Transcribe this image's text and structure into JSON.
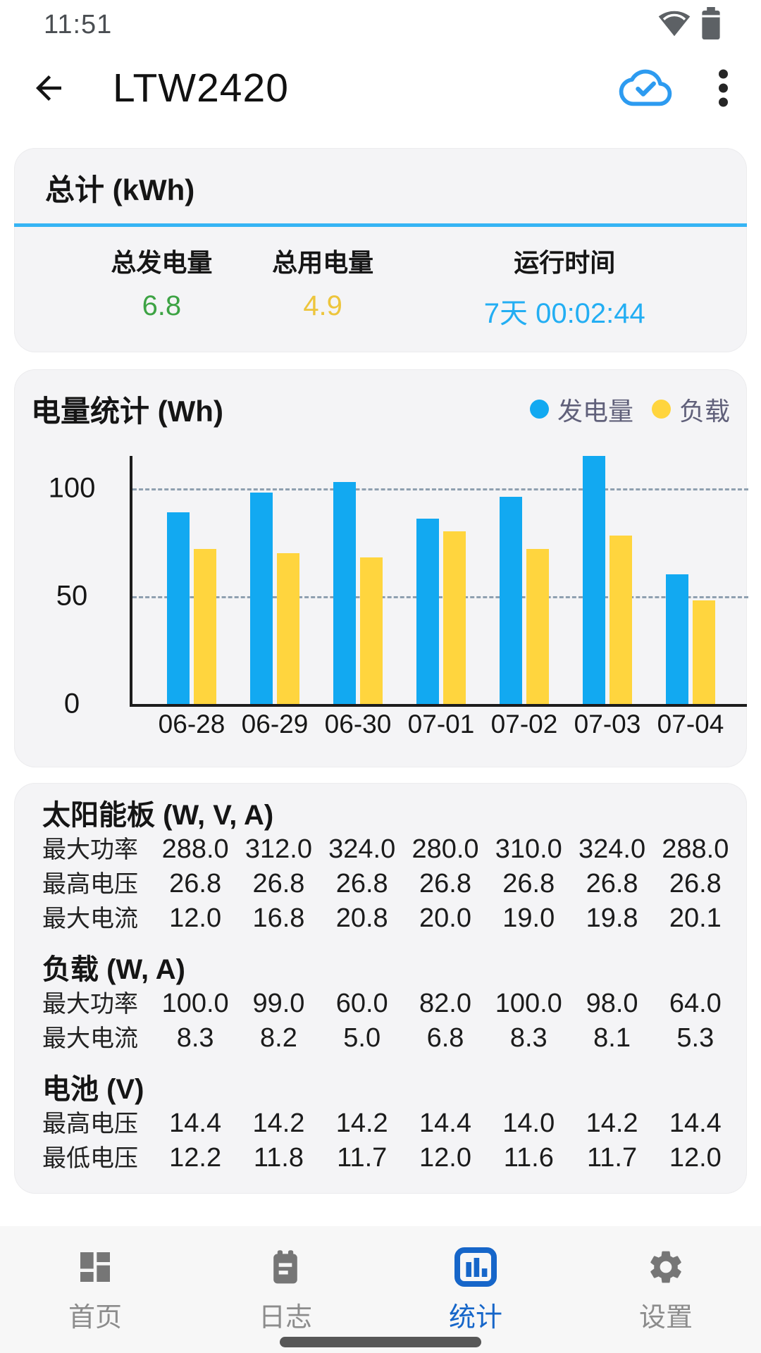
{
  "status_bar": {
    "time": "11:51",
    "icons": [
      "wifi-icon",
      "battery-icon"
    ]
  },
  "header": {
    "title": "LTW2420",
    "icons": [
      "back-arrow-icon",
      "cloud-synced-icon",
      "overflow-menu-icon"
    ]
  },
  "summary_card": {
    "title": "总计 (kWh)",
    "stats": [
      {
        "label": "总发电量",
        "value": "6.8",
        "color": "#3da344"
      },
      {
        "label": "总用电量",
        "value": "4.9",
        "color": "#edc53c"
      },
      {
        "label": "运行时间",
        "value": "7天 00:02:44",
        "color": "#23aef3"
      }
    ]
  },
  "chart_card": {
    "title": "电量统计 (Wh)",
    "legend": [
      {
        "label": "发电量",
        "color": "#12a9f1"
      },
      {
        "label": "负载",
        "color": "#ffd53e"
      }
    ]
  },
  "chart_data": {
    "type": "bar",
    "title": "电量统计 (Wh)",
    "categories": [
      "06-28",
      "06-29",
      "06-30",
      "07-01",
      "07-02",
      "07-03",
      "07-04"
    ],
    "series": [
      {
        "name": "发电量",
        "color": "#12a9f1",
        "values": [
          89,
          98,
          103,
          86,
          96,
          115,
          60
        ]
      },
      {
        "name": "负载",
        "color": "#ffd53e",
        "values": [
          72,
          70,
          68,
          80,
          72,
          78,
          48
        ]
      }
    ],
    "y_ticks": [
      0,
      50,
      100
    ],
    "ylim": [
      0,
      115
    ],
    "grid": "dashed horizontal lines at 50 and 100",
    "legend_position": "top-right"
  },
  "stats_card": {
    "sections": [
      {
        "title": "太阳能板 (W, V, A)",
        "rows": [
          {
            "label": "最大功率",
            "values": [
              "288.0",
              "312.0",
              "324.0",
              "280.0",
              "310.0",
              "324.0",
              "288.0"
            ]
          },
          {
            "label": "最高电压",
            "values": [
              "26.8",
              "26.8",
              "26.8",
              "26.8",
              "26.8",
              "26.8",
              "26.8"
            ]
          },
          {
            "label": "最大电流",
            "values": [
              "12.0",
              "16.8",
              "20.8",
              "20.0",
              "19.0",
              "19.8",
              "20.1"
            ]
          }
        ]
      },
      {
        "title": "负载 (W, A)",
        "rows": [
          {
            "label": "最大功率",
            "values": [
              "100.0",
              "99.0",
              "60.0",
              "82.0",
              "100.0",
              "98.0",
              "64.0"
            ]
          },
          {
            "label": "最大电流",
            "values": [
              "8.3",
              "8.2",
              "5.0",
              "6.8",
              "8.3",
              "8.1",
              "5.3"
            ]
          }
        ]
      },
      {
        "title": "电池 (V)",
        "rows": [
          {
            "label": "最高电压",
            "values": [
              "14.4",
              "14.2",
              "14.2",
              "14.4",
              "14.0",
              "14.2",
              "14.4"
            ]
          },
          {
            "label": "最低电压",
            "values": [
              "12.2",
              "11.8",
              "11.7",
              "12.0",
              "11.6",
              "11.7",
              "12.0"
            ]
          }
        ]
      }
    ]
  },
  "nav_bar": {
    "items": [
      {
        "label": "首页",
        "icon": "dashboard-icon",
        "active": false
      },
      {
        "label": "日志",
        "icon": "log-icon",
        "active": false
      },
      {
        "label": "统计",
        "icon": "statistics-icon",
        "active": true
      },
      {
        "label": "设置",
        "icon": "settings-icon",
        "active": false
      }
    ]
  },
  "colors": {
    "divider_blue": "#36b4f4",
    "bar_blue": "#12a9f1",
    "bar_yellow": "#ffd53e",
    "total_generation_green": "#3da344",
    "total_consumption_yellow": "#edc53c",
    "runtime_blue": "#23aef3",
    "nav_active_blue": "#1666c9",
    "cloud_icon_blue": "#2d9bf0"
  }
}
